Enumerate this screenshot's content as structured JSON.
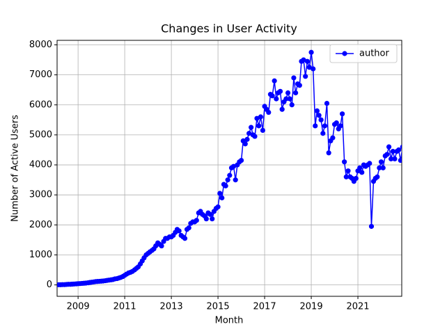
{
  "chart_data": {
    "type": "line",
    "title": "Changes in User Activity",
    "x_label": "Month",
    "y_label": "Number of Active Users",
    "x": [
      2008.17,
      2008.25,
      2008.33,
      2008.42,
      2008.5,
      2008.58,
      2008.67,
      2008.75,
      2008.83,
      2008.92,
      2009,
      2009.08,
      2009.17,
      2009.25,
      2009.33,
      2009.42,
      2009.5,
      2009.58,
      2009.67,
      2009.75,
      2009.83,
      2009.92,
      2010,
      2010.08,
      2010.17,
      2010.25,
      2010.33,
      2010.42,
      2010.5,
      2010.58,
      2010.67,
      2010.75,
      2010.83,
      2010.92,
      2011,
      2011.08,
      2011.17,
      2011.25,
      2011.33,
      2011.42,
      2011.5,
      2011.58,
      2011.67,
      2011.75,
      2011.83,
      2011.92,
      2012,
      2012.08,
      2012.17,
      2012.25,
      2012.33,
      2012.42,
      2012.5,
      2012.58,
      2012.67,
      2012.75,
      2012.83,
      2012.92,
      2013,
      2013.08,
      2013.17,
      2013.25,
      2013.33,
      2013.42,
      2013.5,
      2013.58,
      2013.67,
      2013.75,
      2013.83,
      2013.92,
      2014,
      2014.08,
      2014.17,
      2014.25,
      2014.33,
      2014.42,
      2014.5,
      2014.58,
      2014.67,
      2014.75,
      2014.83,
      2014.92,
      2015,
      2015.08,
      2015.17,
      2015.25,
      2015.33,
      2015.42,
      2015.5,
      2015.58,
      2015.67,
      2015.75,
      2015.83,
      2015.92,
      2016,
      2016.08,
      2016.17,
      2016.25,
      2016.33,
      2016.42,
      2016.5,
      2016.58,
      2016.67,
      2016.75,
      2016.83,
      2016.92,
      2017,
      2017.08,
      2017.17,
      2017.25,
      2017.33,
      2017.42,
      2017.5,
      2017.58,
      2017.67,
      2017.75,
      2017.83,
      2017.92,
      2018,
      2018.08,
      2018.17,
      2018.25,
      2018.33,
      2018.42,
      2018.5,
      2018.58,
      2018.67,
      2018.75,
      2018.83,
      2018.92,
      2019,
      2019.08,
      2019.17,
      2019.25,
      2019.33,
      2019.42,
      2019.5,
      2019.58,
      2019.67,
      2019.75,
      2019.83,
      2019.92,
      2020,
      2020.08,
      2020.17,
      2020.25,
      2020.33,
      2020.42,
      2020.5,
      2020.58,
      2020.67,
      2020.75,
      2020.83,
      2020.92,
      2021,
      2021.08,
      2021.17,
      2021.25,
      2021.33,
      2021.42,
      2021.5,
      2021.58,
      2021.67,
      2021.75,
      2021.83,
      2021.92,
      2022,
      2022.08,
      2022.17,
      2022.25,
      2022.33,
      2022.42,
      2022.5,
      2022.58,
      2022.67,
      2022.75,
      2022.83,
      2022.92
    ],
    "series": [
      {
        "name": "author",
        "color": "#0000ff",
        "values": [
          5,
          5,
          10,
          10,
          15,
          20,
          20,
          25,
          30,
          35,
          40,
          45,
          50,
          55,
          60,
          70,
          80,
          90,
          100,
          110,
          115,
          120,
          125,
          130,
          140,
          150,
          160,
          170,
          180,
          200,
          210,
          230,
          250,
          280,
          320,
          360,
          400,
          420,
          450,
          500,
          550,
          600,
          700,
          800,
          900,
          1000,
          1050,
          1100,
          1150,
          1200,
          1300,
          1400,
          1350,
          1300,
          1450,
          1550,
          1550,
          1600,
          1600,
          1650,
          1750,
          1850,
          1800,
          1650,
          1600,
          1550,
          1850,
          1900,
          2050,
          2100,
          2100,
          2150,
          2400,
          2450,
          2350,
          2300,
          2200,
          2400,
          2350,
          2200,
          2450,
          2550,
          2600,
          3050,
          2900,
          3350,
          3300,
          3500,
          3650,
          3900,
          3950,
          3500,
          4000,
          4100,
          4150,
          4800,
          4700,
          4850,
          5050,
          5250,
          5000,
          4950,
          5550,
          5300,
          5600,
          5150,
          5950,
          5850,
          5750,
          6350,
          6300,
          6800,
          6200,
          6400,
          6450,
          5850,
          6100,
          6200,
          6400,
          6200,
          6000,
          6900,
          6400,
          6700,
          6650,
          7450,
          7500,
          6950,
          7450,
          7250,
          7750,
          7200,
          5300,
          5800,
          5650,
          5500,
          5050,
          5300,
          6050,
          4400,
          4800,
          4900,
          5350,
          5400,
          5200,
          5300,
          5700,
          4100,
          3600,
          3800,
          3600,
          3550,
          3450,
          3550,
          3800,
          3900,
          3750,
          4000,
          3950,
          4000,
          4050,
          1950,
          3450,
          3550,
          3600,
          3900,
          4100,
          3900,
          4300,
          4350,
          4600,
          4200,
          4450,
          4200,
          4450,
          4500,
          4150,
          4600
        ]
      }
    ],
    "xlim": [
      2008.1,
      2022.88
    ],
    "xticks": [
      2009,
      2011,
      2013,
      2015,
      2017,
      2019,
      2021
    ],
    "ylim": [
      -380,
      8150
    ],
    "yticks": [
      0,
      1000,
      2000,
      3000,
      4000,
      5000,
      6000,
      7000,
      8000
    ],
    "grid": true,
    "legend": "upper right"
  }
}
